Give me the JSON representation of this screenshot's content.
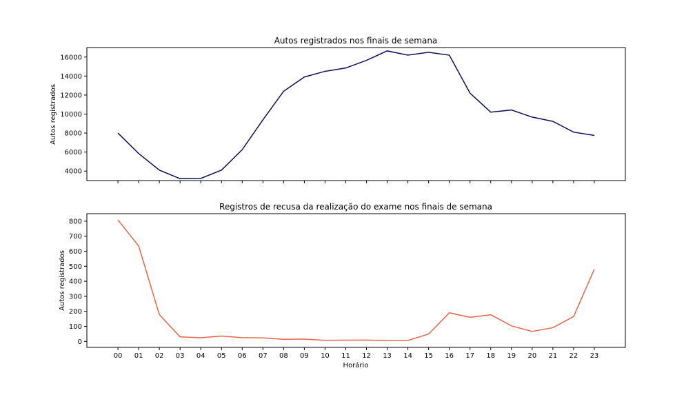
{
  "chart_data": [
    {
      "type": "line",
      "title": "Autos registrados nos finais de semana",
      "xlabel": "",
      "ylabel": "Autos registrados",
      "x": [
        "00",
        "01",
        "02",
        "03",
        "04",
        "05",
        "06",
        "07",
        "08",
        "09",
        "10",
        "11",
        "12",
        "13",
        "14",
        "15",
        "16",
        "17",
        "18",
        "19",
        "20",
        "21",
        "22",
        "23"
      ],
      "series": [
        {
          "values": [
            8000,
            5850,
            4100,
            3200,
            3230,
            4100,
            6250,
            9400,
            12400,
            13900,
            14500,
            14850,
            15650,
            16650,
            16200,
            16500,
            16200,
            12200,
            10200,
            10430,
            9680,
            9230,
            8100,
            7750
          ],
          "color": "#0d0d5c"
        }
      ],
      "ylim": [
        3000,
        17000
      ],
      "yticks": [
        4000,
        6000,
        8000,
        10000,
        12000,
        14000,
        16000
      ],
      "grid": false,
      "legend": "none"
    },
    {
      "type": "line",
      "title": "Registros de recusa da realização do exame nos finais de semana",
      "xlabel": "Horário",
      "ylabel": "Autos registrados",
      "x": [
        "00",
        "01",
        "02",
        "03",
        "04",
        "05",
        "06",
        "07",
        "08",
        "09",
        "10",
        "11",
        "12",
        "13",
        "14",
        "15",
        "16",
        "17",
        "18",
        "19",
        "20",
        "21",
        "22",
        "23"
      ],
      "series": [
        {
          "values": [
            808,
            635,
            178,
            30,
            24,
            35,
            25,
            23,
            14,
            15,
            7,
            8,
            9,
            5,
            6,
            49,
            190,
            160,
            177,
            103,
            66,
            91,
            165,
            480
          ],
          "color": "#e8644a"
        }
      ],
      "ylim": [
        -40,
        850
      ],
      "yticks": [
        0,
        100,
        200,
        300,
        400,
        500,
        600,
        700,
        800
      ],
      "grid": false,
      "legend": "none"
    }
  ]
}
